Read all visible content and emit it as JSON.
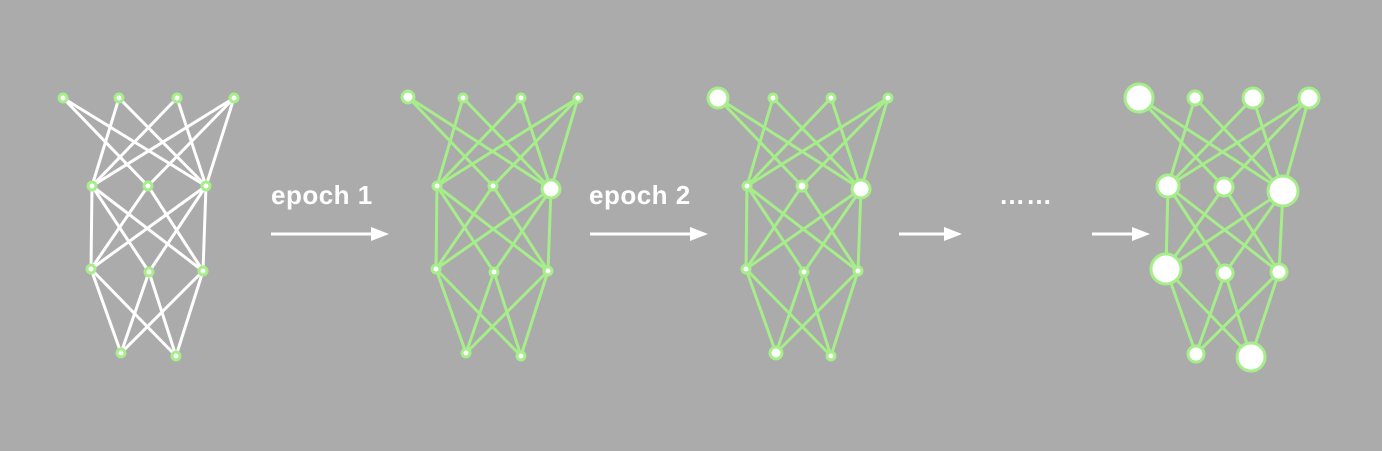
{
  "colors": {
    "background": "#ababab",
    "untrained_edge": "#ffffff",
    "trained_edge": "#a6ee8a",
    "node_fill": "#ffffff",
    "node_ring": "#a6ee8a",
    "arrow": "#ffffff"
  },
  "labels": {
    "step1": "epoch 1",
    "step2": "epoch 2",
    "ellipsis": "……"
  },
  "networks": [
    {
      "name": "network-initial",
      "edge_style": "untrained",
      "layers": [
        4,
        3,
        3,
        2
      ]
    },
    {
      "name": "network-epoch-1",
      "edge_style": "trained",
      "layers": [
        4,
        3,
        3,
        2
      ]
    },
    {
      "name": "network-epoch-2",
      "edge_style": "trained",
      "layers": [
        4,
        3,
        3,
        2
      ]
    },
    {
      "name": "network-final",
      "edge_style": "trained",
      "layers": [
        4,
        3,
        3,
        2
      ]
    }
  ],
  "arrows": [
    "arrow-1",
    "arrow-2",
    "arrow-3",
    "arrow-4"
  ]
}
